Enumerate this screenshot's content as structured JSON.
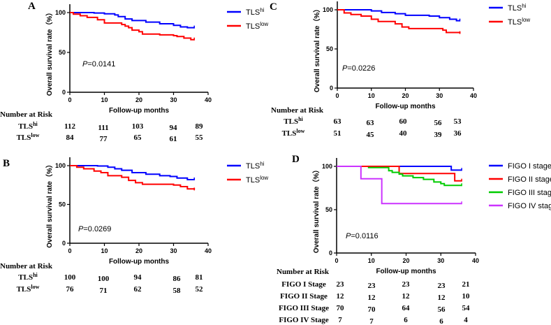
{
  "chart_data": [
    {
      "panel": "A",
      "type": "line",
      "subtype": "kaplan-meier",
      "xlabel": "Follow-up months",
      "ylabel": "Overall survival rate（%）",
      "xlim": [
        0,
        40
      ],
      "ylim": [
        0,
        100
      ],
      "xticks": [
        "0",
        "10",
        "20",
        "30",
        "40"
      ],
      "yticks": [
        "0",
        "50",
        "100"
      ],
      "p_value": "=0.0141",
      "legend_position": "right",
      "series": [
        {
          "name": "TLS",
          "sup": "hi",
          "color": "#0000ff",
          "points": [
            [
              0,
              100
            ],
            [
              7,
              99.5
            ],
            [
              10,
              98.5
            ],
            [
              13,
              97
            ],
            [
              14,
              95
            ],
            [
              16,
              92
            ],
            [
              18,
              90
            ],
            [
              22,
              88
            ],
            [
              26,
              86
            ],
            [
              30,
              84
            ],
            [
              32,
              82
            ],
            [
              34,
              81
            ],
            [
              36,
              81
            ]
          ]
        },
        {
          "name": "TLS",
          "sup": "low",
          "color": "#ff0000",
          "points": [
            [
              0,
              100
            ],
            [
              1,
              98
            ],
            [
              3,
              96
            ],
            [
              5,
              94
            ],
            [
              8,
              91
            ],
            [
              10,
              87
            ],
            [
              15,
              85
            ],
            [
              16,
              83
            ],
            [
              17,
              81
            ],
            [
              18,
              78
            ],
            [
              20,
              76
            ],
            [
              21,
              73
            ],
            [
              26,
              72
            ],
            [
              30,
              71
            ],
            [
              31,
              70
            ],
            [
              33,
              68
            ],
            [
              35,
              66
            ],
            [
              36,
              66
            ]
          ]
        }
      ],
      "risk_title": "Number at Risk",
      "risk_rows": [
        {
          "label": "TLS",
          "sup": "hi",
          "values": [
            "112",
            "111",
            "103",
            "94",
            "89"
          ]
        },
        {
          "label": "TLS",
          "sup": "low",
          "values": [
            "84",
            "77",
            "65",
            "61",
            "55"
          ]
        }
      ]
    },
    {
      "panel": "B",
      "type": "line",
      "subtype": "kaplan-meier",
      "xlabel": "Follow-up months",
      "ylabel": "Overall survival rate（%）",
      "xlim": [
        0,
        40
      ],
      "ylim": [
        0,
        100
      ],
      "xticks": [
        "0",
        "10",
        "20",
        "30",
        "40"
      ],
      "yticks": [
        "0",
        "50",
        "100"
      ],
      "p_value": "=0.0269",
      "legend_position": "right",
      "series": [
        {
          "name": "TLS",
          "sup": "hi",
          "color": "#0000ff",
          "points": [
            [
              0,
              100
            ],
            [
              8,
              99.5
            ],
            [
              11,
              98
            ],
            [
              13,
              96
            ],
            [
              15,
              94
            ],
            [
              18,
              91
            ],
            [
              22,
              89
            ],
            [
              26,
              87
            ],
            [
              29,
              86
            ],
            [
              31,
              84
            ],
            [
              34,
              82
            ],
            [
              36,
              82
            ]
          ]
        },
        {
          "name": "TLS",
          "sup": "low",
          "color": "#ff0000",
          "points": [
            [
              0,
              100
            ],
            [
              2,
              98
            ],
            [
              4,
              96
            ],
            [
              7,
              93
            ],
            [
              9,
              91
            ],
            [
              11,
              87
            ],
            [
              15,
              85
            ],
            [
              17,
              81
            ],
            [
              19,
              78
            ],
            [
              21,
              76
            ],
            [
              30,
              75
            ],
            [
              32,
              73
            ],
            [
              34,
              70
            ],
            [
              36,
              69
            ]
          ]
        }
      ],
      "risk_title": "Number at Risk",
      "risk_rows": [
        {
          "label": "TLS",
          "sup": "hi",
          "values": [
            "100",
            "100",
            "94",
            "86",
            "81"
          ]
        },
        {
          "label": "TLS",
          "sup": "low",
          "values": [
            "76",
            "71",
            "62",
            "58",
            "52"
          ]
        }
      ]
    },
    {
      "panel": "C",
      "type": "line",
      "subtype": "kaplan-meier",
      "xlabel": "Follow-up months",
      "ylabel": "Overall survival rate（%）",
      "xlim": [
        0,
        40
      ],
      "ylim": [
        0,
        100
      ],
      "xticks": [
        "0",
        "10",
        "20",
        "30",
        "40"
      ],
      "yticks": [
        "0",
        "50",
        "100"
      ],
      "p_value": "=0.0226",
      "legend_position": "right",
      "series": [
        {
          "name": "TLS",
          "sup": "hi",
          "color": "#0000ff",
          "points": [
            [
              0,
              100
            ],
            [
              10,
              98.5
            ],
            [
              13,
              96.5
            ],
            [
              17,
              95
            ],
            [
              20,
              93
            ],
            [
              27,
              92
            ],
            [
              30,
              90
            ],
            [
              33,
              88
            ],
            [
              35,
              86
            ],
            [
              36,
              86
            ]
          ]
        },
        {
          "name": "TLS",
          "sup": "low",
          "color": "#ff0000",
          "points": [
            [
              0,
              100
            ],
            [
              2,
              96
            ],
            [
              4,
              94
            ],
            [
              7,
              92
            ],
            [
              10,
              88
            ],
            [
              12,
              85
            ],
            [
              17,
              82
            ],
            [
              19,
              78
            ],
            [
              21,
              76
            ],
            [
              31,
              74
            ],
            [
              32,
              71
            ],
            [
              36,
              70
            ]
          ]
        }
      ],
      "risk_title": "Number at Risk",
      "risk_rows": [
        {
          "label": "TLS",
          "sup": "hi",
          "values": [
            "63",
            "63",
            "60",
            "56",
            "53"
          ]
        },
        {
          "label": "TLS",
          "sup": "low",
          "values": [
            "51",
            "45",
            "40",
            "39",
            "36"
          ]
        }
      ]
    },
    {
      "panel": "D",
      "type": "line",
      "subtype": "kaplan-meier",
      "xlabel": "Follow-up months",
      "ylabel": "Overall survival rate（%）",
      "xlim": [
        0,
        40
      ],
      "ylim": [
        0,
        100
      ],
      "xticks": [
        "0",
        "10",
        "20",
        "30",
        "40"
      ],
      "yticks": [
        "0",
        "50",
        "100"
      ],
      "p_value": "=0.0116",
      "legend_position": "right",
      "series": [
        {
          "name": "FIGO I stage",
          "color": "#0000ff",
          "points": [
            [
              0,
              100
            ],
            [
              33,
              100
            ],
            [
              33,
              95.7
            ],
            [
              36,
              95.7
            ]
          ]
        },
        {
          "name": "FIGO II stage",
          "color": "#ff0000",
          "points": [
            [
              0,
              100
            ],
            [
              18,
              100
            ],
            [
              18,
              91.7
            ],
            [
              34,
              91.7
            ],
            [
              34,
              83.3
            ],
            [
              36,
              83.3
            ]
          ]
        },
        {
          "name": "FIGO III stage",
          "color": "#00cc00",
          "points": [
            [
              9,
              98.6
            ],
            [
              14,
              98.6
            ],
            [
              15,
              95
            ],
            [
              16,
              93
            ],
            [
              18,
              91
            ],
            [
              19,
              89
            ],
            [
              22,
              87
            ],
            [
              25,
              85
            ],
            [
              28,
              82
            ],
            [
              30,
              80
            ],
            [
              31,
              78
            ],
            [
              36,
              78
            ]
          ]
        },
        {
          "name": "FIGO IV stage",
          "color": "#cc33ff",
          "points": [
            [
              0,
              100
            ],
            [
              7,
              100
            ],
            [
              7,
              85.7
            ],
            [
              13,
              85.7
            ],
            [
              13,
              57.1
            ],
            [
              36,
              57.1
            ]
          ]
        }
      ],
      "risk_title": "Number at Risk",
      "risk_rows": [
        {
          "label": "FIGO I Stage",
          "values": [
            "23",
            "23",
            "23",
            "23",
            "21"
          ]
        },
        {
          "label": "FIGO II Stage",
          "values": [
            "12",
            "12",
            "12",
            "12",
            "10"
          ]
        },
        {
          "label": "FIGO III  Stage",
          "values": [
            "70",
            "70",
            "64",
            "56",
            "54"
          ]
        },
        {
          "label": "FIGO IV Stage",
          "values": [
            "7",
            "7",
            "6",
            "6",
            "4"
          ]
        }
      ]
    }
  ]
}
